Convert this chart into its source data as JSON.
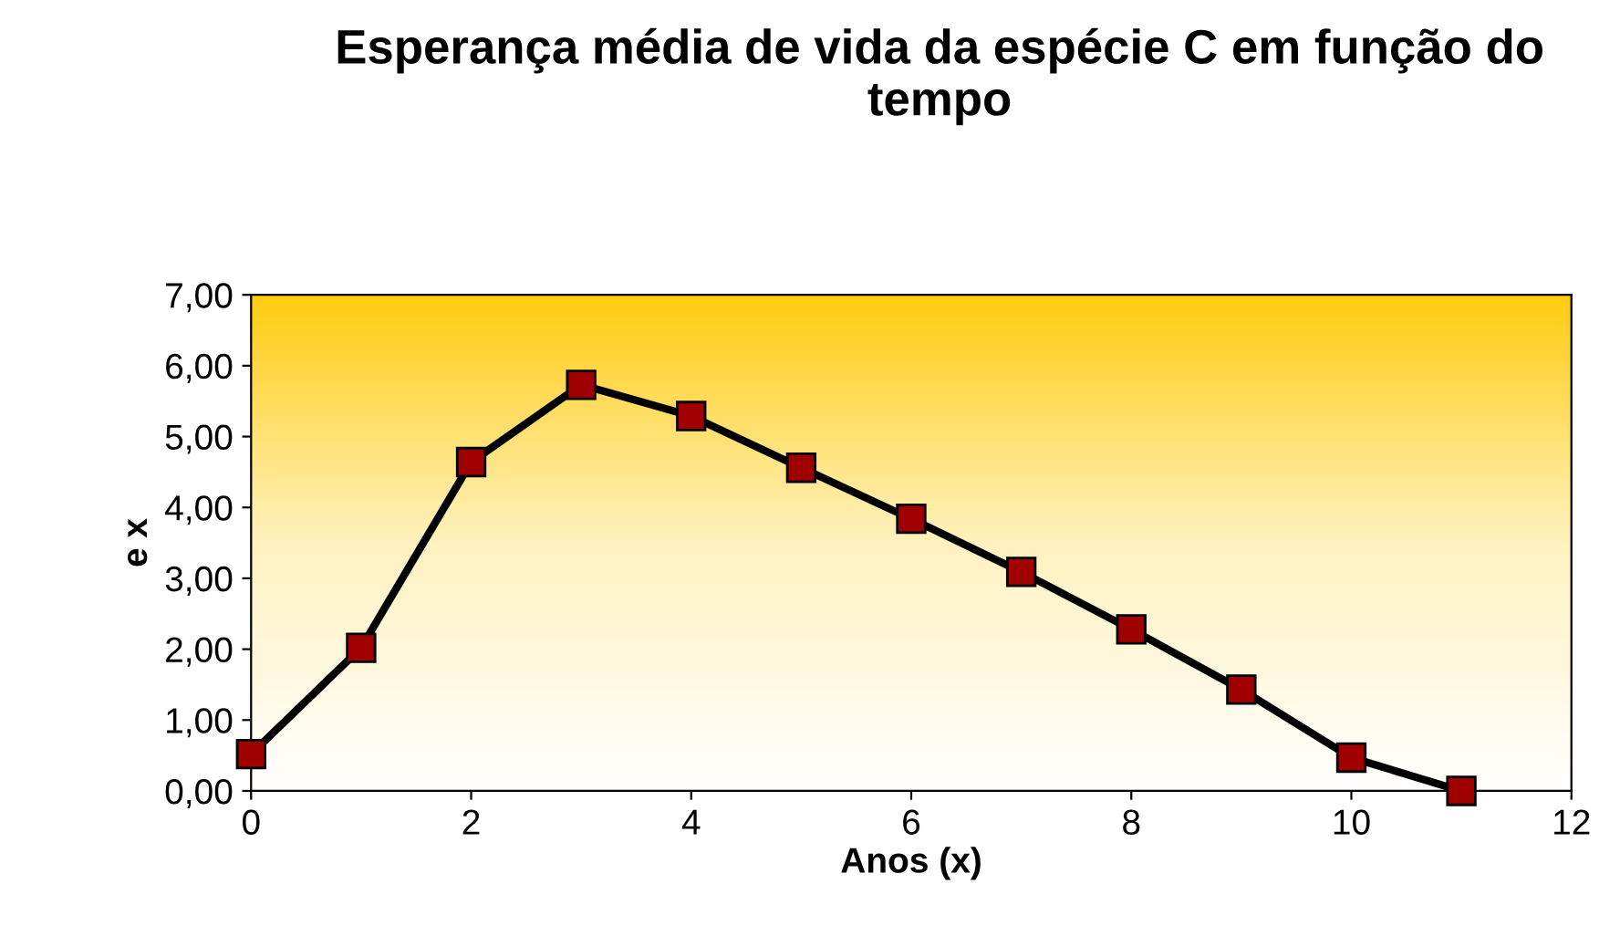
{
  "chart_data": {
    "type": "line",
    "title": "Esperança média de vida da espécie C em função do tempo",
    "xlabel": "Anos (x)",
    "ylabel": "e x",
    "x": [
      0,
      1,
      2,
      3,
      4,
      5,
      6,
      7,
      8,
      9,
      10,
      11
    ],
    "series": [
      {
        "color": "#000000",
        "values": [
          0.52,
          2.02,
          4.64,
          5.73,
          5.29,
          4.56,
          3.84,
          3.09,
          2.28,
          1.43,
          0.47,
          0.0
        ]
      }
    ],
    "marker": "square",
    "line_style": "solid",
    "grid": false,
    "legend": false,
    "xlim": [
      0,
      12
    ],
    "xticks": [
      0,
      2,
      4,
      6,
      8,
      10,
      12
    ],
    "ylim": [
      0,
      7
    ],
    "yticks": [
      {
        "value": 0,
        "label": "0,00"
      },
      {
        "value": 1,
        "label": "1,00"
      },
      {
        "value": 2,
        "label": "2,00"
      },
      {
        "value": 3,
        "label": "3,00"
      },
      {
        "value": 4,
        "label": "4,00"
      },
      {
        "value": 5,
        "label": "5,00"
      },
      {
        "value": 6,
        "label": "6,00"
      },
      {
        "value": 7,
        "label": "7,00"
      }
    ]
  }
}
